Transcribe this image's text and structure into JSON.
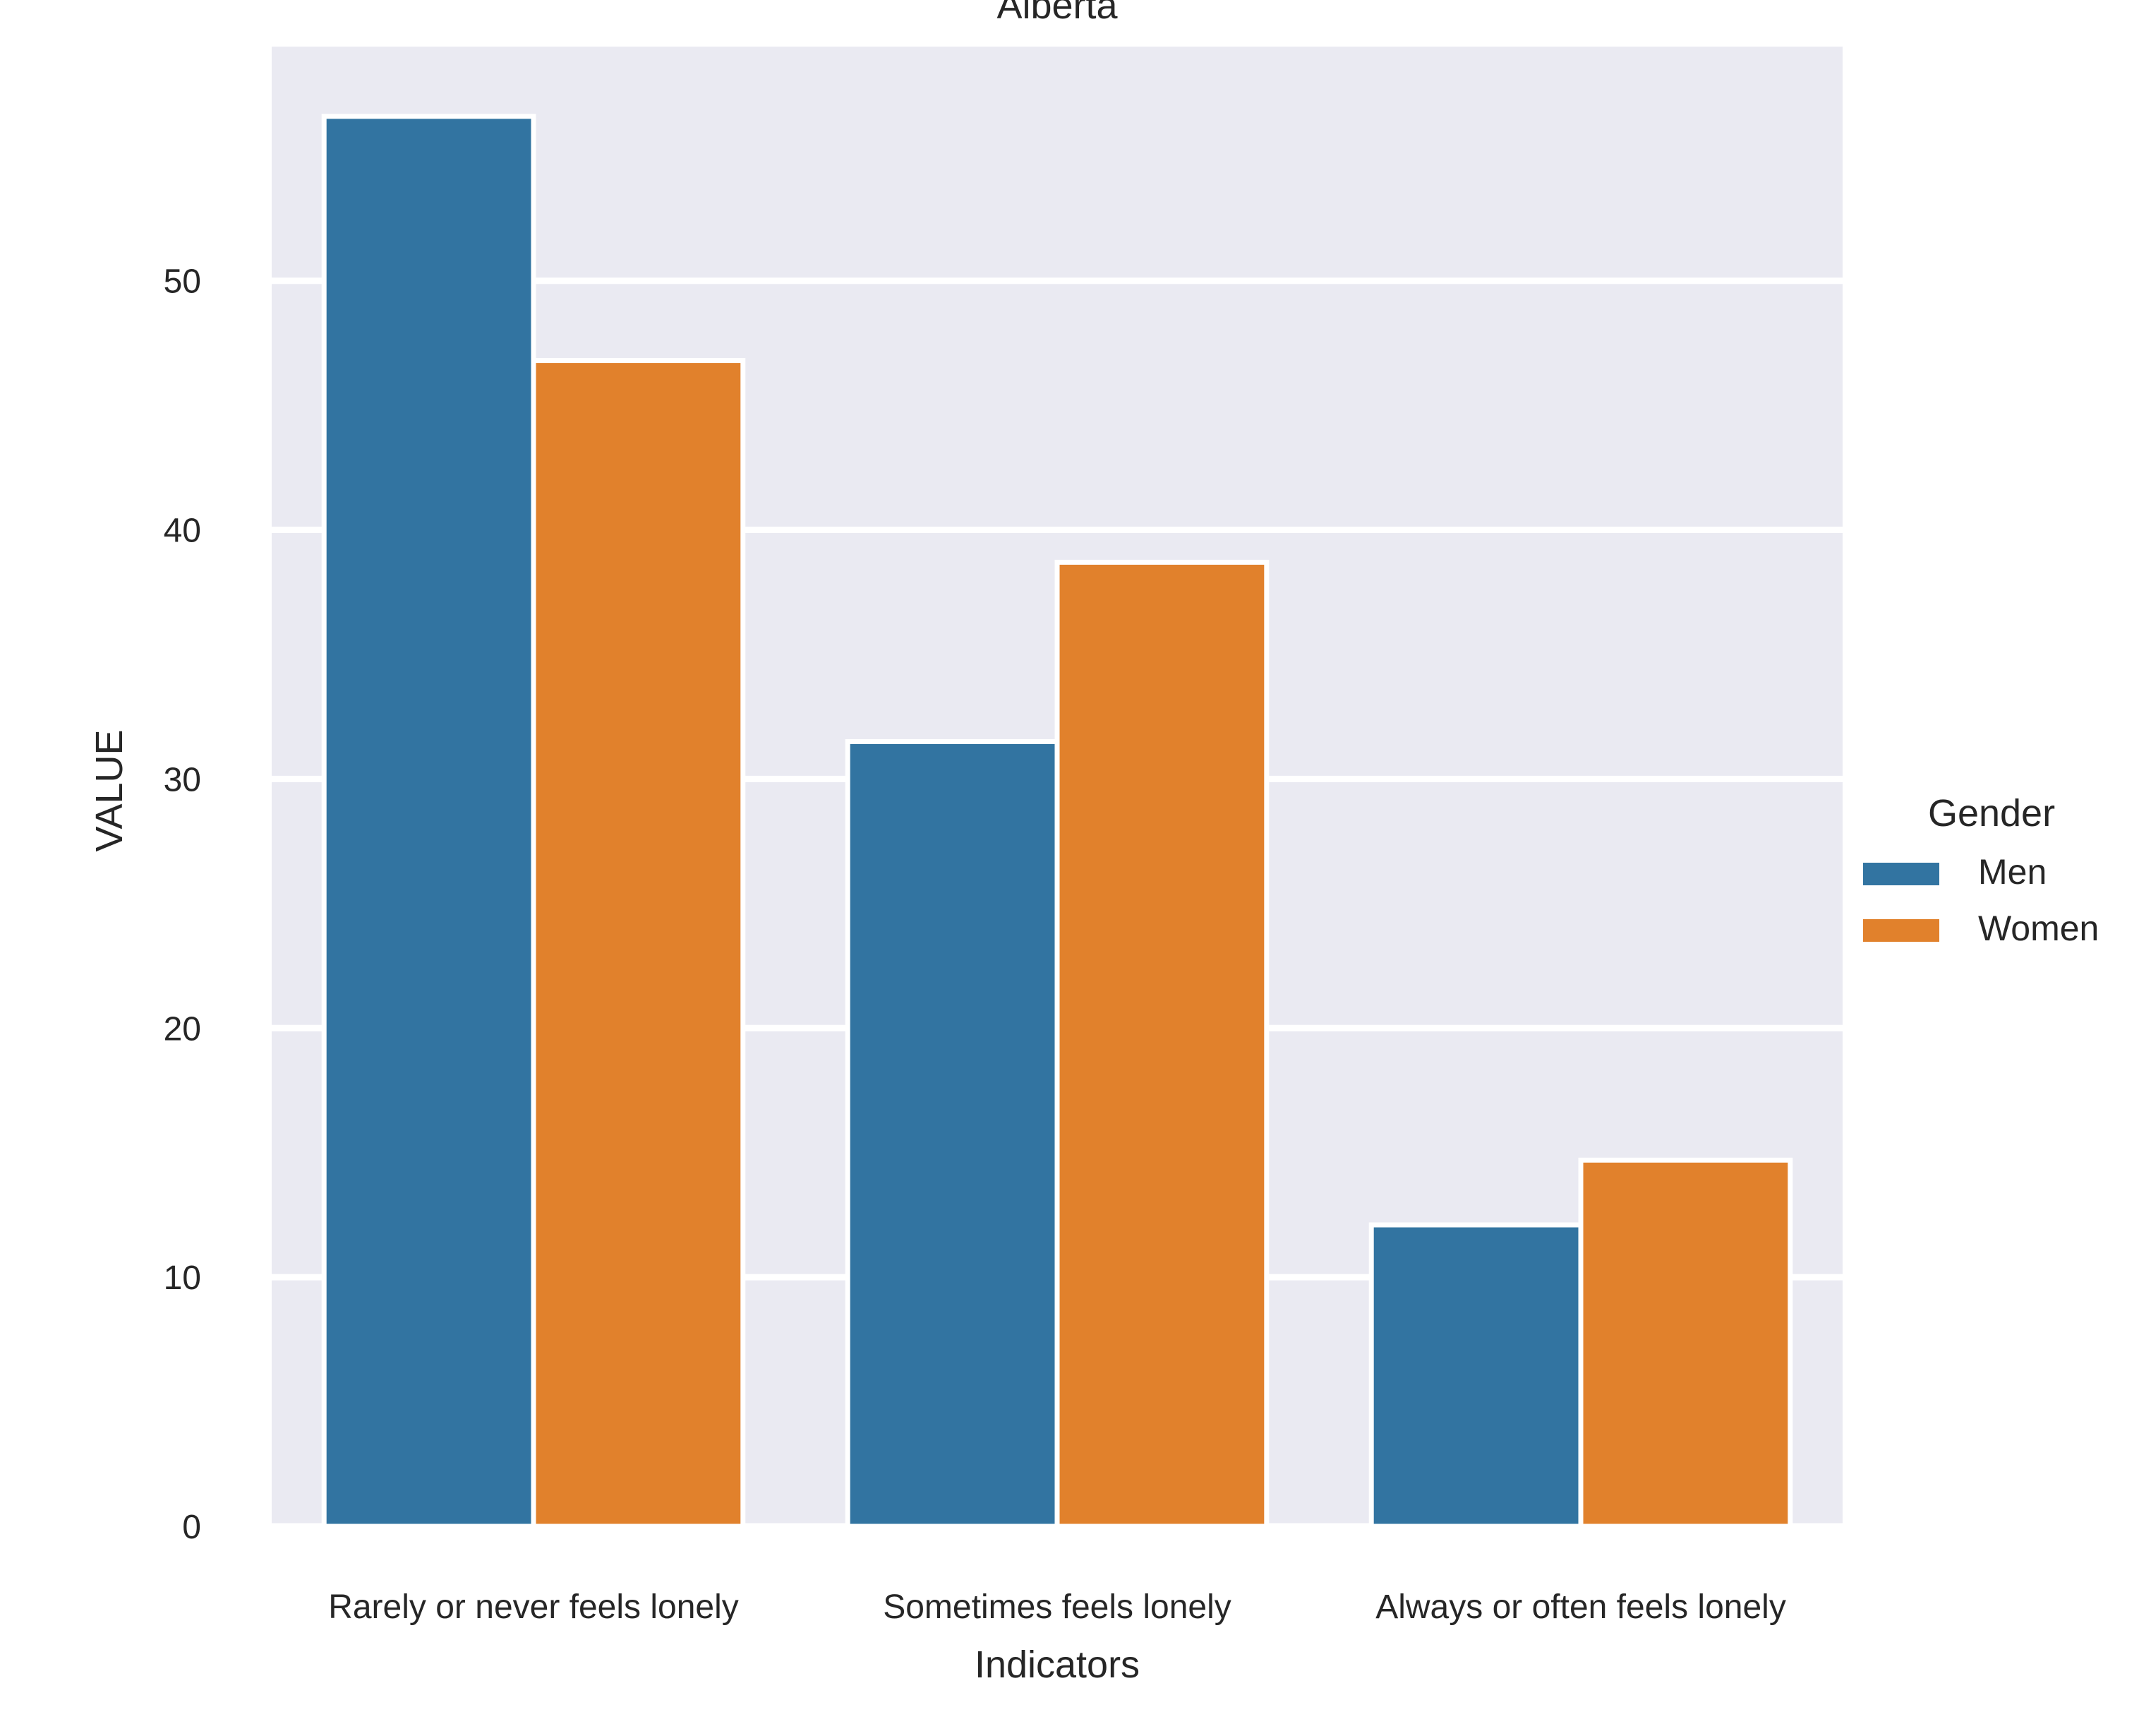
{
  "chart_data": {
    "type": "bar",
    "title": "Alberta",
    "xlabel": "Indicators",
    "ylabel": "VALUE",
    "categories": [
      "Rarely or never feels lonely",
      "Sometimes feels lonely",
      "Always or often feels lonely"
    ],
    "series": [
      {
        "name": "Men",
        "color": "#3274a1",
        "values": [
          56.6,
          31.5,
          12.1
        ]
      },
      {
        "name": "Women",
        "color": "#e1812c",
        "values": [
          46.8,
          38.7,
          14.7
        ]
      }
    ],
    "ylim": [
      0,
      59.4
    ],
    "yticks": [
      0,
      10,
      20,
      30,
      40,
      50
    ],
    "grid": true,
    "background": "#eaeaf2",
    "legend": {
      "title": "Gender",
      "placement": "right"
    }
  }
}
